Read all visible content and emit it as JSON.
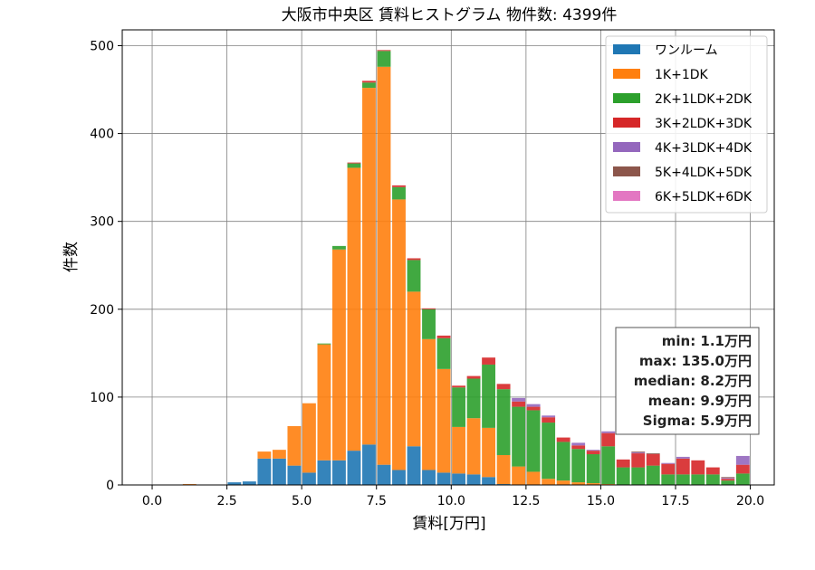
{
  "chart_data": {
    "type": "bar",
    "stacked": true,
    "title": "大阪市中央区 賃料ヒストグラム  物件数: 4399件",
    "xlabel": "賃料[万円]",
    "ylabel": "件数",
    "xlim": [
      -1.0,
      20.8
    ],
    "ylim": [
      0,
      518
    ],
    "xticks": [
      0.0,
      2.5,
      5.0,
      7.5,
      10.0,
      12.5,
      15.0,
      17.5,
      20.0
    ],
    "xtick_labels": [
      "0.0",
      "2.5",
      "5.0",
      "7.5",
      "10.0",
      "12.5",
      "15.0",
      "17.5",
      "20.0"
    ],
    "yticks": [
      0,
      100,
      200,
      300,
      400,
      500
    ],
    "ytick_labels": [
      "0",
      "100",
      "200",
      "300",
      "400",
      "500"
    ],
    "grid": true,
    "legend_position": "top-right",
    "bin_width": 0.5,
    "bin_starts": [
      0.0,
      0.5,
      1.0,
      1.5,
      2.0,
      2.5,
      3.0,
      3.5,
      4.0,
      4.5,
      5.0,
      5.5,
      6.0,
      6.5,
      7.0,
      7.5,
      8.0,
      8.5,
      9.0,
      9.5,
      10.0,
      10.5,
      11.0,
      11.5,
      12.0,
      12.5,
      13.0,
      13.5,
      14.0,
      14.5,
      15.0,
      15.5,
      16.0,
      16.5,
      17.0,
      17.5,
      18.0,
      18.5,
      19.0,
      19.5
    ],
    "series": [
      {
        "name": "ワンルーム",
        "color": "#1f77b4",
        "values": [
          0,
          0,
          0,
          0,
          0,
          3,
          4,
          30,
          30,
          22,
          14,
          28,
          28,
          39,
          46,
          23,
          17,
          44,
          17,
          14,
          13,
          12,
          9,
          1,
          0,
          0,
          0,
          0,
          0,
          0,
          0,
          0,
          0,
          0,
          0,
          0,
          0,
          0,
          0,
          0
        ]
      },
      {
        "name": "1K+1DK",
        "color": "#ff7f0e",
        "values": [
          0,
          0,
          1,
          0,
          0,
          0,
          0,
          8,
          10,
          45,
          79,
          132,
          240,
          322,
          406,
          453,
          308,
          176,
          149,
          118,
          53,
          64,
          56,
          33,
          21,
          15,
          7,
          5,
          3,
          2,
          1,
          0,
          0,
          0,
          0,
          0,
          0,
          0,
          0,
          0
        ]
      },
      {
        "name": "2K+1LDK+2DK",
        "color": "#2ca02c",
        "values": [
          0,
          0,
          0,
          0,
          0,
          0,
          0,
          0,
          0,
          0,
          0,
          1,
          4,
          5,
          6,
          18,
          14,
          36,
          34,
          35,
          45,
          45,
          72,
          75,
          68,
          70,
          64,
          44,
          38,
          33,
          43,
          20,
          20,
          22,
          12,
          12,
          12,
          12,
          5,
          13
        ]
      },
      {
        "name": "3K+2LDK+3DK",
        "color": "#d62728",
        "values": [
          0,
          0,
          0,
          0,
          0,
          0,
          0,
          0,
          0,
          0,
          0,
          0,
          0,
          1,
          2,
          1,
          2,
          2,
          1,
          3,
          2,
          3,
          8,
          6,
          6,
          4,
          6,
          5,
          4,
          4,
          15,
          9,
          16,
          13,
          12,
          18,
          16,
          8,
          2,
          10
        ]
      },
      {
        "name": "4K+3LDK+4DK",
        "color": "#9467bd",
        "values": [
          0,
          0,
          0,
          0,
          0,
          0,
          0,
          0,
          0,
          0,
          0,
          0,
          0,
          0,
          0,
          0,
          0,
          0,
          0,
          0,
          0,
          0,
          0,
          0,
          4,
          3,
          2,
          0,
          3,
          1,
          2,
          0,
          1,
          0,
          1,
          2,
          0,
          0,
          1,
          10
        ]
      },
      {
        "name": "5K+4LDK+5DK",
        "color": "#8c564b",
        "values": [
          0,
          0,
          0,
          0,
          0,
          0,
          0,
          0,
          0,
          0,
          0,
          0,
          0,
          0,
          0,
          0,
          0,
          0,
          0,
          0,
          0,
          0,
          0,
          0,
          0,
          0,
          0,
          0,
          0,
          0,
          0,
          0,
          1,
          1,
          0,
          0,
          0,
          0,
          1,
          0
        ]
      },
      {
        "name": "6K+5LDK+6DK",
        "color": "#e377c2",
        "values": [
          0,
          0,
          0,
          0,
          0,
          0,
          0,
          0,
          0,
          0,
          0,
          0,
          0,
          0,
          0,
          0,
          0,
          0,
          0,
          0,
          0,
          0,
          0,
          0,
          0,
          0,
          0,
          0,
          0,
          0,
          0,
          0,
          0,
          0,
          0,
          0,
          0,
          0,
          0,
          0
        ]
      }
    ],
    "stats_box": {
      "lines": [
        "min: 1.1万円",
        "max: 135.0万円",
        "median: 8.2万円",
        "mean: 9.9万円",
        "Sigma: 5.9万円"
      ]
    }
  }
}
